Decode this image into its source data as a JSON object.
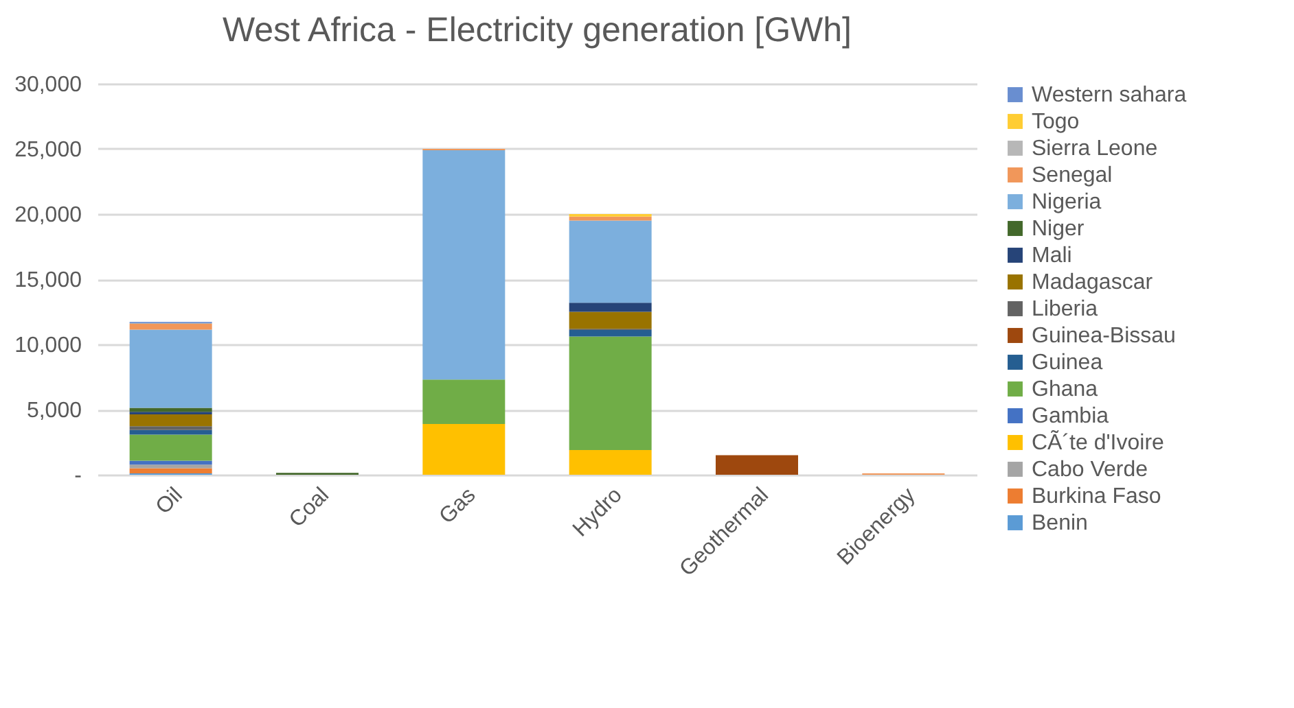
{
  "chart_data": {
    "type": "bar",
    "title": "West Africa - Electricity generation [GWh]",
    "stacked": true,
    "legend": "right",
    "grid": "y",
    "categories": [
      "Oil",
      "Coal",
      "Gas",
      "Hydro",
      "Geothermal",
      "Bioenergy"
    ],
    "ylim": [
      0,
      30000
    ],
    "yticks": [
      {
        "value": 0,
        "label": "-"
      },
      {
        "value": 5000,
        "label": "5,000"
      },
      {
        "value": 10000,
        "label": "10,000"
      },
      {
        "value": 15000,
        "label": "15,000"
      },
      {
        "value": 20000,
        "label": "20,000"
      },
      {
        "value": 25000,
        "label": "25,000"
      },
      {
        "value": 30000,
        "label": "30,000"
      }
    ],
    "series": [
      {
        "name": "Benin",
        "color": "#5b9bd5",
        "values": [
          100,
          null,
          null,
          null,
          null,
          null
        ]
      },
      {
        "name": "Burkina Faso",
        "color": "#ed7d31",
        "values": [
          400,
          null,
          null,
          null,
          null,
          null
        ]
      },
      {
        "name": "Cabo Verde",
        "color": "#a5a5a5",
        "values": [
          280,
          null,
          null,
          null,
          null,
          null
        ]
      },
      {
        "name": "CÃ´te d'Ivoire",
        "color": "#ffc000",
        "values": [
          null,
          null,
          3900,
          1900,
          null,
          null
        ]
      },
      {
        "name": "Gambia",
        "color": "#4472c4",
        "values": [
          300,
          null,
          null,
          null,
          null,
          null
        ]
      },
      {
        "name": "Ghana",
        "color": "#70ad47",
        "values": [
          2000,
          null,
          3400,
          8700,
          null,
          null
        ]
      },
      {
        "name": "Guinea",
        "color": "#255e91",
        "values": [
          350,
          null,
          null,
          500,
          null,
          null
        ]
      },
      {
        "name": "Guinea-Bissau",
        "color": "#9e480e",
        "values": [
          null,
          null,
          null,
          null,
          1500,
          null
        ]
      },
      {
        "name": "Liberia",
        "color": "#636363",
        "values": [
          300,
          null,
          null,
          100,
          null,
          null
        ]
      },
      {
        "name": "Madagascar",
        "color": "#997300",
        "values": [
          900,
          null,
          null,
          1300,
          null,
          null
        ]
      },
      {
        "name": "Mali",
        "color": "#264478",
        "values": [
          200,
          null,
          null,
          700,
          null,
          null
        ]
      },
      {
        "name": "Niger",
        "color": "#43682b",
        "values": [
          300,
          150,
          null,
          null,
          null,
          null
        ]
      },
      {
        "name": "Nigeria",
        "color": "#7cafdd",
        "values": [
          6000,
          null,
          17600,
          6300,
          null,
          null
        ]
      },
      {
        "name": "Senegal",
        "color": "#f1975a",
        "values": [
          450,
          null,
          100,
          300,
          null,
          100
        ]
      },
      {
        "name": "Sierra Leone",
        "color": "#b7b7b7",
        "values": [
          50,
          null,
          null,
          null,
          null,
          null
        ]
      },
      {
        "name": "Togo",
        "color": "#ffcd33",
        "values": [
          null,
          null,
          null,
          200,
          null,
          null
        ]
      },
      {
        "name": "Western sahara",
        "color": "#698ed0",
        "values": [
          100,
          null,
          null,
          null,
          null,
          null
        ]
      }
    ]
  }
}
